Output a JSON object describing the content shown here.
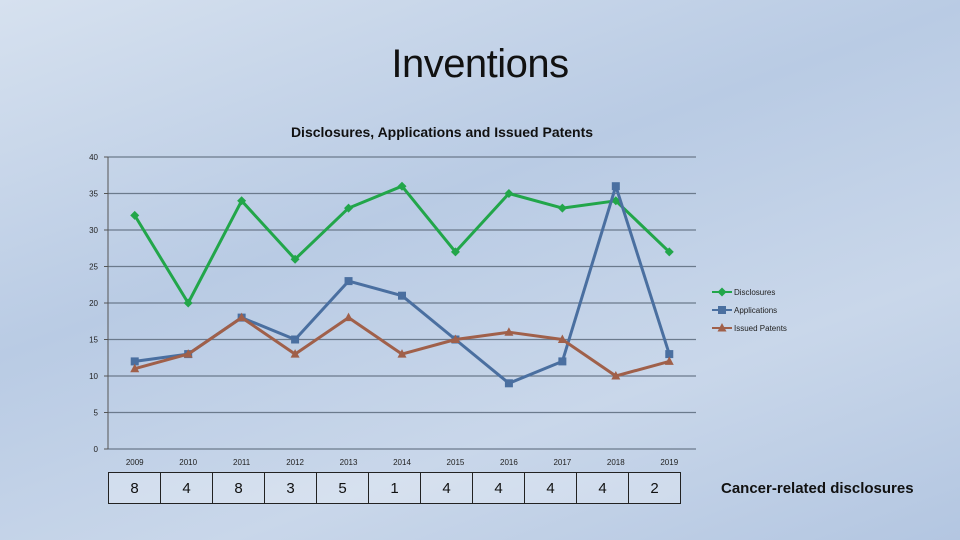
{
  "slide": {
    "title": "Inventions"
  },
  "chart_data": {
    "type": "line",
    "title": "Disclosures, Applications and Issued Patents",
    "categories": [
      "2009",
      "2010",
      "2011",
      "2012",
      "2013",
      "2014",
      "2015",
      "2016",
      "2017",
      "2018",
      "2019"
    ],
    "ylim": [
      0,
      40
    ],
    "yticks": [
      0,
      5,
      10,
      15,
      20,
      25,
      30,
      35,
      40
    ],
    "grid": true,
    "legend_position": "right",
    "series": [
      {
        "name": "Disclosures",
        "color": "#22a64a",
        "marker": "diamond",
        "values": [
          32,
          20,
          34,
          26,
          33,
          36,
          27,
          35,
          33,
          34,
          27
        ]
      },
      {
        "name": "Applications",
        "color": "#4a6fa0",
        "marker": "square",
        "values": [
          12,
          13,
          18,
          15,
          23,
          21,
          15,
          9,
          12,
          36,
          13
        ]
      },
      {
        "name": "Issued Patents",
        "color": "#a0604a",
        "marker": "triangle",
        "values": [
          11,
          13,
          18,
          13,
          18,
          13,
          15,
          16,
          15,
          10,
          12
        ]
      }
    ]
  },
  "counts": {
    "label": "Cancer-related disclosures",
    "values": [
      "8",
      "4",
      "8",
      "3",
      "5",
      "1",
      "4",
      "4",
      "4",
      "4",
      "2"
    ]
  }
}
